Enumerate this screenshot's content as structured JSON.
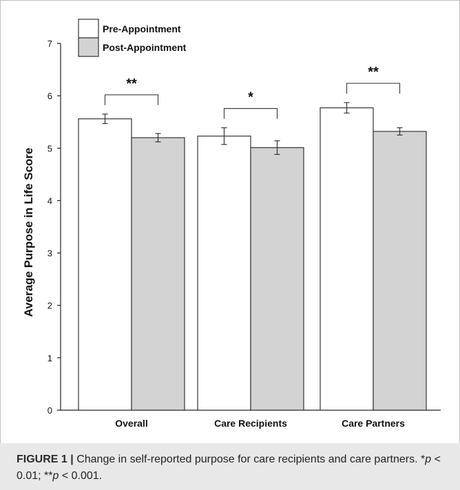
{
  "chart_data": {
    "type": "bar",
    "categories": [
      "Overall",
      "Care Recipients",
      "Care Partners"
    ],
    "series": [
      {
        "name": "Pre-Appointment",
        "values": [
          5.56,
          5.23,
          5.77
        ],
        "errors": [
          0.09,
          0.16,
          0.1
        ],
        "color": "#ffffff"
      },
      {
        "name": "Post-Appointment",
        "values": [
          5.2,
          5.01,
          5.32
        ],
        "errors": [
          0.08,
          0.13,
          0.07
        ],
        "color": "#d3d3d3"
      }
    ],
    "ylabel": "Average Purpose in Life Score",
    "xlabel": "",
    "ylim": [
      0,
      7
    ],
    "yticks": [
      "0",
      "1",
      "2",
      "3",
      "4",
      "5",
      "6",
      "7"
    ],
    "significance": [
      "**",
      "*",
      "**"
    ],
    "legend_position": "top-left",
    "grid": false
  },
  "caption": {
    "label": "FIGURE 1",
    "separator": "|",
    "text_before": "Change in self-reported purpose for care recipients and care partners. *",
    "p1": "p",
    "text_mid": " < 0.01; **",
    "p2": "p",
    "text_after": " < 0.001."
  }
}
